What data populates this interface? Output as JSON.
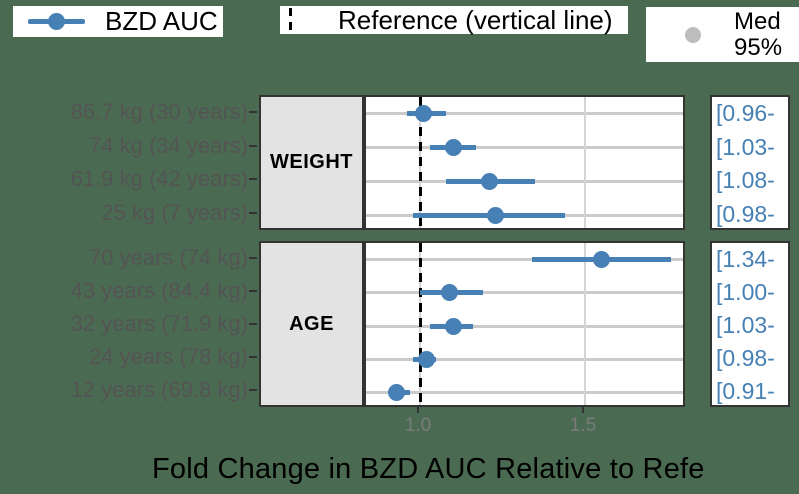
{
  "colors": {
    "background": "#4A6B52",
    "accent_blue": "#4680B4",
    "panel_border": "#333333",
    "strip_fill": "#E3E3E3",
    "gridline": "#CBCBCB",
    "y_label_gray": "#545454",
    "tick_label_gray": "#7B7B7B",
    "legend_gray_dot": "#BDBDBD"
  },
  "legend": {
    "series1_label": "BZD AUC",
    "series2_label": "Reference (vertical line)",
    "series3_label_line1": "Med",
    "series3_label_line2": "95%"
  },
  "x_axis": {
    "title": "Fold Change in BZD AUC Relative to Refe",
    "ticks": [
      {
        "label": "1.0",
        "value": 1.0
      },
      {
        "label": "1.5",
        "value": 1.5
      }
    ]
  },
  "chart_data": {
    "type": "scatter",
    "subtype": "forest-plot-point-interval",
    "title": "",
    "xlabel": "Fold Change in BZD AUC Relative to Refe",
    "ylabel": "",
    "xlim": [
      0.836,
      1.809
    ],
    "reference_x": 1.0,
    "x_gridlines": [
      1.0,
      1.5
    ],
    "grid": "on",
    "legend_position": "top",
    "panels": [
      {
        "strip": "WEIGHT",
        "rows": [
          {
            "label": "86.7 kg (30 years)",
            "est": 1.01,
            "lo": 0.96,
            "hi": 1.08,
            "ci_label": "[0.96-"
          },
          {
            "label": "74 kg (34 years)",
            "est": 1.1,
            "lo": 1.03,
            "hi": 1.17,
            "ci_label": "[1.03-"
          },
          {
            "label": "61.9 kg (42 years)",
            "est": 1.21,
            "lo": 1.08,
            "hi": 1.35,
            "ci_label": "[1.08-"
          },
          {
            "label": "25 kg (7 years)",
            "est": 1.23,
            "lo": 0.98,
            "hi": 1.44,
            "ci_label": "[0.98-"
          }
        ]
      },
      {
        "strip": "AGE",
        "rows": [
          {
            "label": "70 years (74 kg)",
            "est": 1.55,
            "lo": 1.34,
            "hi": 1.76,
            "ci_label": "[1.34-"
          },
          {
            "label": "43 years (84.4 kg)",
            "est": 1.09,
            "lo": 1.0,
            "hi": 1.19,
            "ci_label": "[1.00-"
          },
          {
            "label": "32 years (71.9 kg)",
            "est": 1.1,
            "lo": 1.03,
            "hi": 1.16,
            "ci_label": "[1.03-"
          },
          {
            "label": "24 years (78 kg)",
            "est": 1.02,
            "lo": 0.98,
            "hi": 1.05,
            "ci_label": "[0.98-"
          },
          {
            "label": "12 years (69.8 kg)",
            "est": 0.93,
            "lo": 0.91,
            "hi": 0.97,
            "ci_label": "[0.91-"
          }
        ]
      }
    ]
  }
}
